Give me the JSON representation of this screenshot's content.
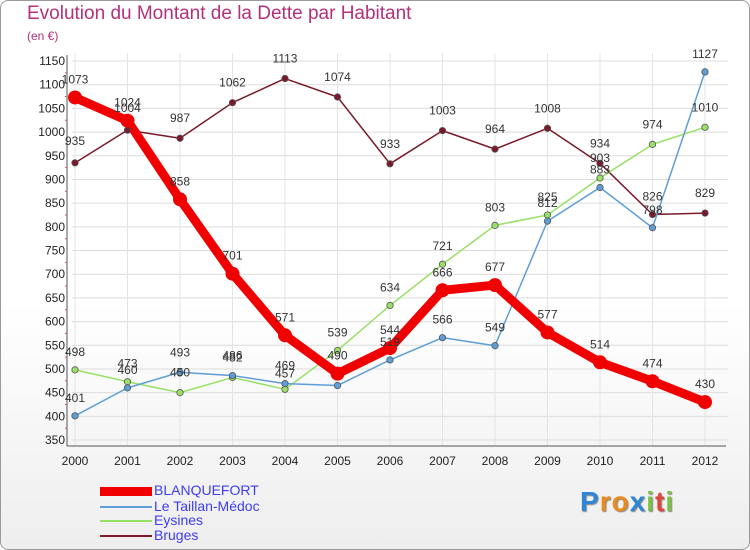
{
  "title": "Evolution du Montant de la Dette par Habitant",
  "unit_label": "(en €)",
  "logo": {
    "text": "Proxiti",
    "letters": [
      "P",
      "r",
      "o",
      "x",
      "i",
      "t",
      "i"
    ],
    "colors": [
      "#2f86d6",
      "#e98a1c",
      "#e98a1c",
      "#2f86d6",
      "#7cc242",
      "#e0463a",
      "#7cc242"
    ]
  },
  "chart_data": {
    "type": "line",
    "title": "Evolution du Montant de la Dette par Habitant",
    "ylabel": "(en €)",
    "xlabel": "",
    "x": [
      "2000",
      "2001",
      "2002",
      "2003",
      "2004",
      "2005",
      "2006",
      "2007",
      "2008",
      "2009",
      "2010",
      "2011",
      "2012"
    ],
    "ylim": [
      350,
      1150
    ],
    "yticks": [
      350,
      400,
      450,
      500,
      550,
      600,
      650,
      700,
      750,
      800,
      850,
      900,
      950,
      1000,
      1050,
      1100,
      1150
    ],
    "grid": true,
    "legend_position": "bottom-left",
    "series": [
      {
        "name": "Bruges",
        "color": "#7a1a2a",
        "values": [
          935,
          1004,
          987,
          1062,
          1113,
          1074,
          933,
          1003,
          964,
          1008,
          934,
          826,
          829
        ],
        "labels": [
          "935",
          "1004",
          "987",
          "1062",
          "1113",
          "1074",
          "933",
          "1003",
          "964",
          "1008",
          "934",
          "826",
          "829"
        ]
      },
      {
        "name": "Eysines",
        "color": "#99e066",
        "values": [
          498,
          473,
          450,
          482,
          457,
          539,
          634,
          721,
          803,
          825,
          903,
          974,
          1010
        ],
        "labels": [
          "498",
          "473",
          "450",
          "482",
          "457",
          "539",
          "634",
          "721",
          "803",
          "825",
          "903",
          "974",
          "1010"
        ]
      },
      {
        "name": "Le Taillan-Médoc",
        "color": "#5d9ed6",
        "values": [
          401,
          460,
          493,
          486,
          469,
          465,
          519,
          566,
          549,
          812,
          883,
          798,
          1127
        ],
        "labels": [
          "401",
          "460",
          "493",
          "486",
          "469",
          "",
          "519",
          "566",
          "549",
          "812",
          "883",
          "798",
          "1127"
        ]
      },
      {
        "name": "BLANQUEFORT",
        "color": "#f00000",
        "values": [
          1073,
          1024,
          858,
          701,
          571,
          490,
          544,
          666,
          677,
          577,
          514,
          474,
          430
        ],
        "labels": [
          "1073",
          "1024",
          "858",
          "701",
          "571",
          "490",
          "544",
          "666",
          "677",
          "577",
          "514",
          "474",
          "430"
        ]
      }
    ]
  }
}
